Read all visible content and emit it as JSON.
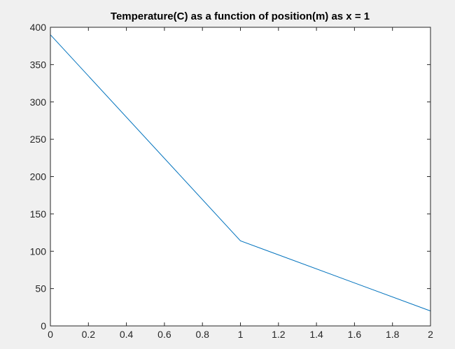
{
  "chart_data": {
    "type": "line",
    "title": "Temperature(C) as a function of position(m) as x = 1",
    "xlabel": "",
    "ylabel": "",
    "xlim": [
      0,
      2
    ],
    "ylim": [
      0,
      400
    ],
    "x_ticks": [
      0,
      0.2,
      0.4,
      0.6,
      0.8,
      1,
      1.2,
      1.4,
      1.6,
      1.8,
      2
    ],
    "x_tick_labels": [
      "0",
      "0.2",
      "0.4",
      "0.6",
      "0.8",
      "1",
      "1.2",
      "1.4",
      "1.6",
      "1.8",
      "2"
    ],
    "y_ticks": [
      0,
      50,
      100,
      150,
      200,
      250,
      300,
      350,
      400
    ],
    "y_tick_labels": [
      "0",
      "50",
      "100",
      "150",
      "200",
      "250",
      "300",
      "350",
      "400"
    ],
    "grid": false,
    "series": [
      {
        "x": [
          0,
          1,
          2
        ],
        "values": [
          390,
          114,
          20
        ],
        "color": "#0072bd"
      }
    ]
  },
  "colors": {
    "figure_background": "#f0f0f0",
    "axes_background": "#ffffff",
    "axis_color": "#262626"
  }
}
